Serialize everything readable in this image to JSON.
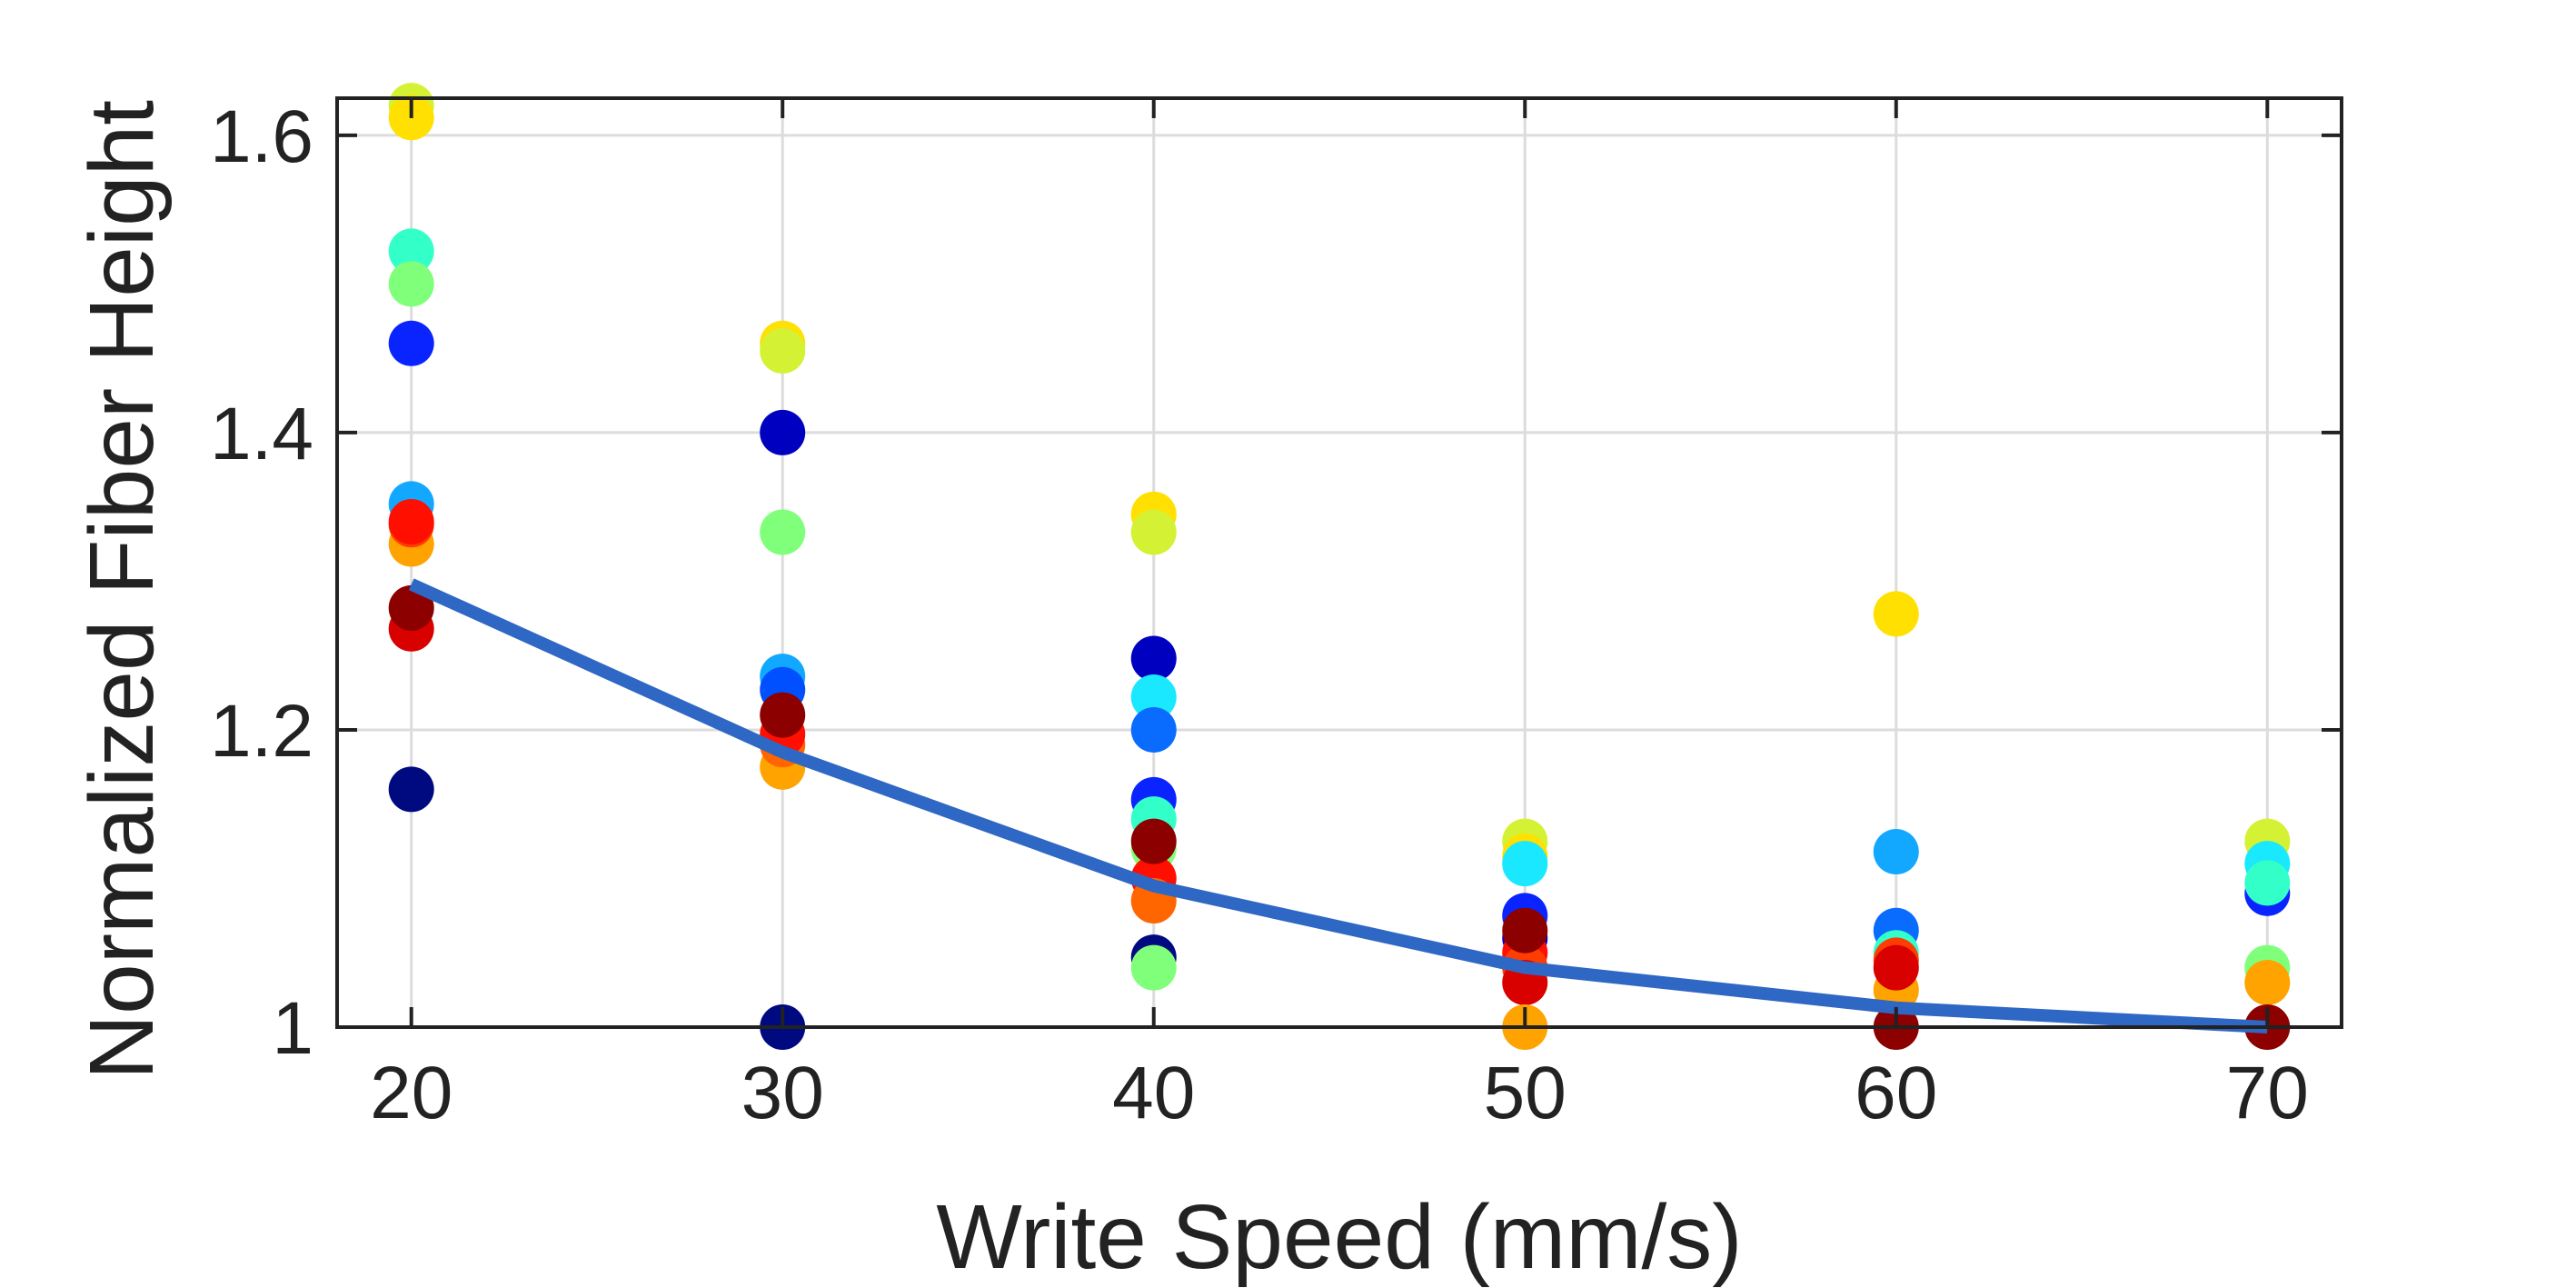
{
  "chart_data": {
    "type": "scatter",
    "xlabel": "Write Speed (mm/s)",
    "ylabel": "Normalized Fiber Height",
    "xlim": [
      18,
      72
    ],
    "ylim": [
      1.0,
      1.625
    ],
    "xticks": [
      20,
      30,
      40,
      50,
      60,
      70
    ],
    "xtick_labels": [
      "20",
      "30",
      "40",
      "50",
      "60",
      "70"
    ],
    "yticks": [
      1.0,
      1.2,
      1.4,
      1.6
    ],
    "ytick_labels": [
      "1",
      "1.2",
      "1.4",
      "1.6"
    ],
    "grid": true,
    "points": [
      {
        "x": 20,
        "y": 1.62,
        "color": "#d4f233"
      },
      {
        "x": 20,
        "y": 1.612,
        "color": "#ffe000"
      },
      {
        "x": 20,
        "y": 1.522,
        "color": "#33ffc8"
      },
      {
        "x": 20,
        "y": 1.5,
        "color": "#80ff7a"
      },
      {
        "x": 20,
        "y": 1.46,
        "color": "#0a24ff"
      },
      {
        "x": 20,
        "y": 1.352,
        "color": "#12a8ff"
      },
      {
        "x": 20,
        "y": 1.325,
        "color": "#ffa300"
      },
      {
        "x": 20,
        "y": 1.338,
        "color": "#ff3d00"
      },
      {
        "x": 20,
        "y": 1.34,
        "color": "#ff0f00"
      },
      {
        "x": 20,
        "y": 1.268,
        "color": "#d90000"
      },
      {
        "x": 20,
        "y": 1.282,
        "color": "#8c0000"
      },
      {
        "x": 20,
        "y": 1.16,
        "color": "#000a80"
      },
      {
        "x": 30,
        "y": 1.46,
        "color": "#ffe000"
      },
      {
        "x": 30,
        "y": 1.455,
        "color": "#d4f233"
      },
      {
        "x": 30,
        "y": 1.4,
        "color": "#0000c0"
      },
      {
        "x": 30,
        "y": 1.333,
        "color": "#80ff7a"
      },
      {
        "x": 30,
        "y": 1.236,
        "color": "#12a8ff"
      },
      {
        "x": 30,
        "y": 1.227,
        "color": "#0050ff"
      },
      {
        "x": 30,
        "y": 1.175,
        "color": "#ffa300"
      },
      {
        "x": 30,
        "y": 1.19,
        "color": "#ff6600"
      },
      {
        "x": 30,
        "y": 1.197,
        "color": "#ff0f00"
      },
      {
        "x": 30,
        "y": 1.21,
        "color": "#8c0000"
      },
      {
        "x": 30,
        "y": 1.0,
        "color": "#000a80"
      },
      {
        "x": 40,
        "y": 1.345,
        "color": "#ffe000"
      },
      {
        "x": 40,
        "y": 1.333,
        "color": "#d4f233"
      },
      {
        "x": 40,
        "y": 1.248,
        "color": "#0000c0"
      },
      {
        "x": 40,
        "y": 1.222,
        "color": "#19e8ff"
      },
      {
        "x": 40,
        "y": 1.2,
        "color": "#0a6cff"
      },
      {
        "x": 40,
        "y": 1.153,
        "color": "#0a24ff"
      },
      {
        "x": 40,
        "y": 1.14,
        "color": "#33ffc8"
      },
      {
        "x": 40,
        "y": 1.12,
        "color": "#80ff7a"
      },
      {
        "x": 40,
        "y": 1.1,
        "color": "#ff0f00"
      },
      {
        "x": 40,
        "y": 1.085,
        "color": "#ff6600"
      },
      {
        "x": 40,
        "y": 1.125,
        "color": "#8c0000"
      },
      {
        "x": 40,
        "y": 1.047,
        "color": "#000a80"
      },
      {
        "x": 40,
        "y": 1.04,
        "color": "#80ff7a"
      },
      {
        "x": 50,
        "y": 1.125,
        "color": "#d4f233"
      },
      {
        "x": 50,
        "y": 1.115,
        "color": "#ffe000"
      },
      {
        "x": 50,
        "y": 1.11,
        "color": "#19e8ff"
      },
      {
        "x": 50,
        "y": 1.075,
        "color": "#0a24ff"
      },
      {
        "x": 50,
        "y": 1.06,
        "color": "#0000c0"
      },
      {
        "x": 50,
        "y": 1.05,
        "color": "#ff0f00"
      },
      {
        "x": 50,
        "y": 1.04,
        "color": "#ff3d00"
      },
      {
        "x": 50,
        "y": 1.03,
        "color": "#d90000"
      },
      {
        "x": 50,
        "y": 1.065,
        "color": "#8c0000"
      },
      {
        "x": 50,
        "y": 1.0,
        "color": "#ffa300"
      },
      {
        "x": 60,
        "y": 1.278,
        "color": "#ffe000"
      },
      {
        "x": 60,
        "y": 1.118,
        "color": "#12a8ff"
      },
      {
        "x": 60,
        "y": 1.065,
        "color": "#0a6cff"
      },
      {
        "x": 60,
        "y": 1.05,
        "color": "#33ffc8"
      },
      {
        "x": 60,
        "y": 1.045,
        "color": "#ff3d00"
      },
      {
        "x": 60,
        "y": 1.025,
        "color": "#ffa300"
      },
      {
        "x": 60,
        "y": 1.04,
        "color": "#d90000"
      },
      {
        "x": 60,
        "y": 1.0,
        "color": "#8c0000"
      },
      {
        "x": 70,
        "y": 1.125,
        "color": "#d4f233"
      },
      {
        "x": 70,
        "y": 1.11,
        "color": "#19e8ff"
      },
      {
        "x": 70,
        "y": 1.09,
        "color": "#0a24ff"
      },
      {
        "x": 70,
        "y": 1.097,
        "color": "#33ffc8"
      },
      {
        "x": 70,
        "y": 1.04,
        "color": "#80ff7a"
      },
      {
        "x": 70,
        "y": 1.03,
        "color": "#ffa300"
      },
      {
        "x": 70,
        "y": 1.0,
        "color": "#8c0000"
      }
    ],
    "trend_line": {
      "color": "#2f67c4",
      "x": [
        20,
        30,
        40,
        50,
        60,
        70
      ],
      "y": [
        1.298,
        1.185,
        1.095,
        1.04,
        1.013,
        1.0
      ]
    }
  }
}
